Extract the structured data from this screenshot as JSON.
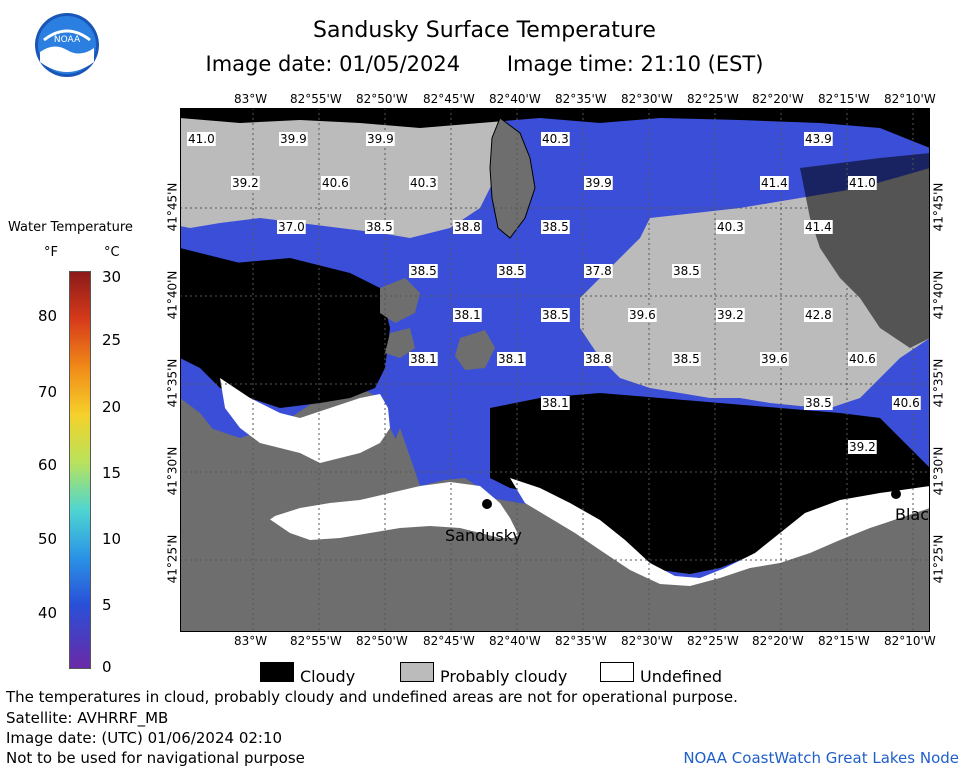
{
  "header": {
    "title": "Sandusky Surface Temperature",
    "image_date": "Image date: 01/05/2024",
    "image_time": "Image time: 21:10 (EST)"
  },
  "logo": {
    "text": "NOAA",
    "icon": "noaa-logo"
  },
  "map": {
    "lon_ticks": [
      "83°W",
      "82°55'W",
      "82°50'W",
      "82°45'W",
      "82°40'W",
      "82°35'W",
      "82°30'W",
      "82°25'W",
      "82°20'W",
      "82°15'W",
      "82°10'W"
    ],
    "lat_ticks": [
      "41°45'N",
      "41°40'N",
      "41°35'N",
      "41°30'N",
      "41°25'N"
    ],
    "place_labels": [
      "Sandusky",
      "Blac"
    ],
    "temperature_labels": [
      "41.0",
      "39.9",
      "39.9",
      "40.3",
      "43.9",
      "39.2",
      "40.6",
      "40.3",
      "39.9",
      "41.4",
      "41.0",
      "37.0",
      "38.5",
      "38.8",
      "38.5",
      "40.3",
      "41.4",
      "38.5",
      "38.5",
      "37.8",
      "38.5",
      "38.1",
      "38.5",
      "39.6",
      "39.2",
      "42.8",
      "38.1",
      "38.1",
      "38.8",
      "38.5",
      "39.6",
      "40.6",
      "38.1",
      "38.5",
      "40.6",
      "39.2"
    ]
  },
  "colorbar": {
    "title": "Water Temperature",
    "unit_f": "°F",
    "unit_c": "°C",
    "f_ticks": [
      "80",
      "70",
      "60",
      "50",
      "40"
    ],
    "c_ticks": [
      "30",
      "25",
      "20",
      "15",
      "10",
      "5",
      "0"
    ]
  },
  "legend": {
    "cloudy": "Cloudy",
    "probably_cloudy": "Probably cloudy",
    "undefined": "Undefined",
    "colors": {
      "cloudy": "#000000",
      "probably_cloudy": "#bbbbbb",
      "undefined": "#ffffff",
      "land": "#6e6e6e",
      "water": "#3a4ed8"
    }
  },
  "footer": {
    "line1": "The temperatures in cloud, probably cloudy and undefined areas are not for operational purpose.",
    "line2": "Satellite: AVHRRF_MB",
    "line3": "Image date: (UTC) 01/06/2024  02:10",
    "line4": "Not to be used for navigational purpose",
    "node": "NOAA CoastWatch Great Lakes Node"
  }
}
